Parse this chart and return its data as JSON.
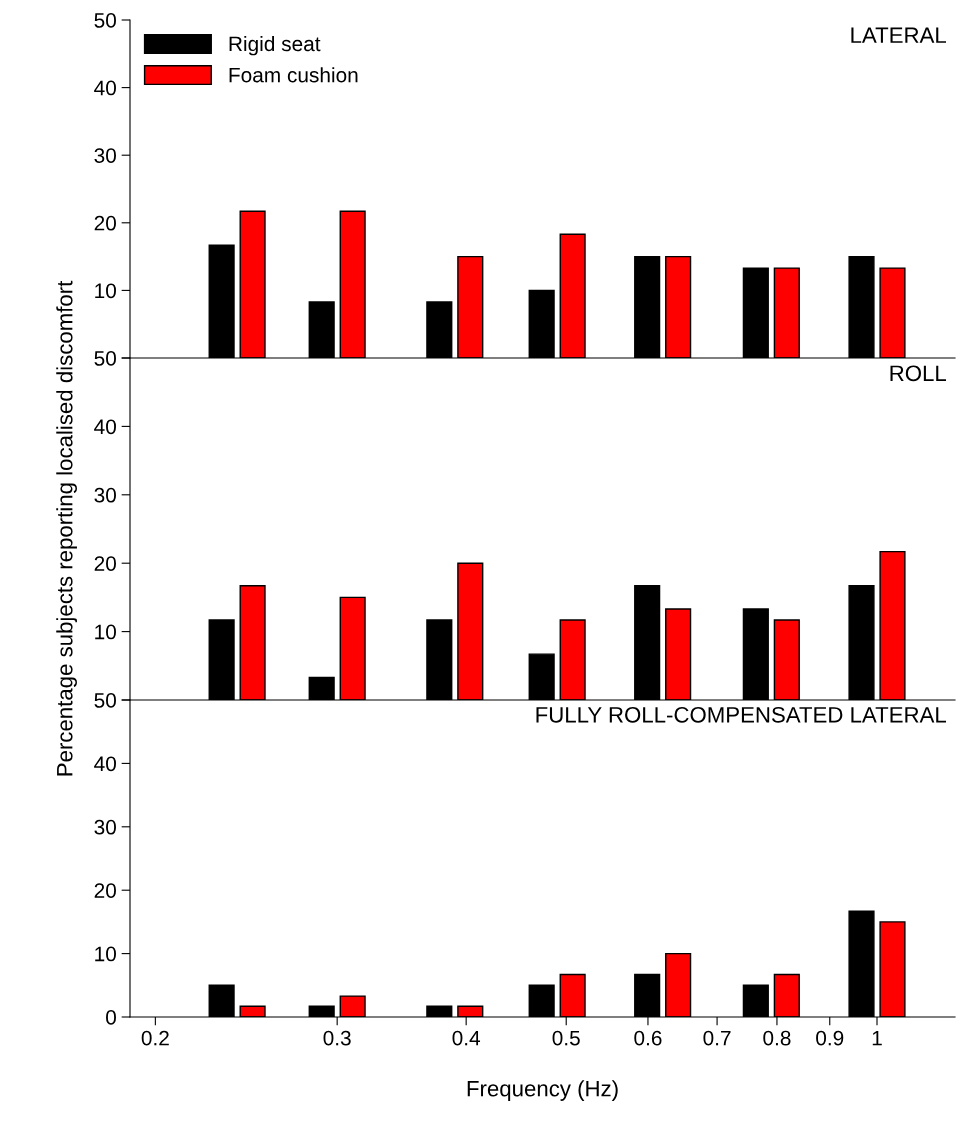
{
  "chart_data": [
    {
      "type": "bar",
      "title": "LATERAL",
      "x": [
        0.24,
        0.3,
        0.39,
        0.49,
        0.62,
        0.79,
        1.0
      ],
      "log": "x",
      "xlim": [
        0.189,
        1.19
      ],
      "ylim": [
        0,
        50
      ],
      "yticks": [
        {
          "value": 0,
          "label": null
        },
        10,
        20,
        30,
        40,
        50
      ],
      "tick_labels": "y",
      "legend": "top left",
      "grid": false,
      "series": [
        {
          "name": "Rigid seat",
          "color": "#000000",
          "values": [
            16.7,
            8.3,
            8.3,
            10,
            15,
            13.3,
            15
          ]
        },
        {
          "name": "Foam cushion",
          "color": "#ff0000",
          "values": [
            21.7,
            21.7,
            15,
            18.3,
            15,
            13.3,
            13.3
          ]
        }
      ]
    },
    {
      "type": "bar",
      "title": "ROLL",
      "ylabel": "Percentage subjects reporting localised discomfort",
      "x": [
        0.24,
        0.3,
        0.39,
        0.49,
        0.62,
        0.79,
        1.0
      ],
      "log": "x",
      "xlim": [
        0.189,
        1.19
      ],
      "ylim": [
        0,
        50
      ],
      "yticks": [
        {
          "value": 0,
          "label": null
        },
        10,
        20,
        30,
        40,
        50
      ],
      "tick_labels": "y",
      "grid": false,
      "series": [
        {
          "color": "#000000",
          "values": [
            11.7,
            3.3,
            11.7,
            6.7,
            16.7,
            13.3,
            16.7
          ]
        },
        {
          "color": "#ff0000",
          "values": [
            16.7,
            15,
            20,
            11.7,
            13.3,
            11.7,
            21.7
          ]
        }
      ]
    },
    {
      "type": "bar",
      "title": "FULLY ROLL-COMPENSATED LATERAL",
      "xlabel": "Frequency (Hz)",
      "x": [
        0.24,
        0.3,
        0.39,
        0.49,
        0.62,
        0.79,
        1.0
      ],
      "log": "x",
      "xlim": [
        0.189,
        1.19
      ],
      "xticks": [
        0.2,
        0.3,
        0.4,
        0.5,
        0.6,
        0.7,
        0.8,
        0.9,
        1
      ],
      "ylim": [
        0,
        50
      ],
      "yticks": [
        0,
        10,
        20,
        30,
        40,
        50
      ],
      "grid": false,
      "series": [
        {
          "color": "#000000",
          "values": [
            5,
            1.7,
            1.7,
            5,
            6.7,
            5,
            16.7
          ]
        },
        {
          "color": "#ff0000",
          "values": [
            1.7,
            3.3,
            1.7,
            6.7,
            10,
            6.7,
            15
          ]
        }
      ]
    }
  ]
}
